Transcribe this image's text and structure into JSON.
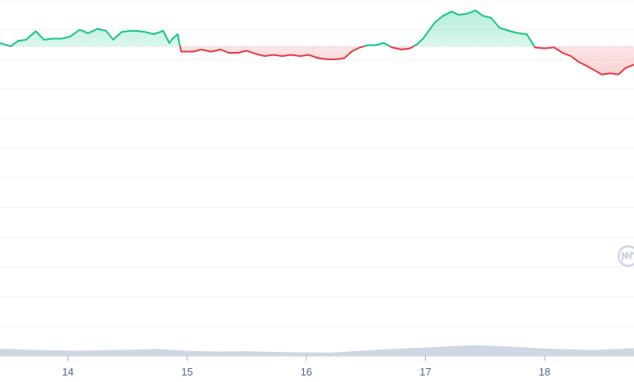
{
  "chart_data": {
    "type": "line",
    "title": "",
    "xlabel": "",
    "ylabel": "",
    "x_ticks": [
      "14",
      "15",
      "16",
      "17",
      "18"
    ],
    "x_range": [
      13.43,
      18.75
    ],
    "y_range": [
      0,
      12
    ],
    "baseline": 10.44,
    "grid": true,
    "legend": "none",
    "colors": {
      "up": "#16c784",
      "down": "#ea3943",
      "volume": "#cfd6e4",
      "grid": "#eff2f5",
      "baseline": "#b8bfcc",
      "logo": "#cfd6e4"
    },
    "price": [
      [
        13.43,
        10.55
      ],
      [
        13.52,
        10.44
      ],
      [
        13.58,
        10.62
      ],
      [
        13.65,
        10.66
      ],
      [
        13.73,
        10.95
      ],
      [
        13.8,
        10.66
      ],
      [
        13.88,
        10.7
      ],
      [
        13.95,
        10.7
      ],
      [
        14.02,
        10.77
      ],
      [
        14.1,
        11.0
      ],
      [
        14.17,
        10.88
      ],
      [
        14.25,
        11.03
      ],
      [
        14.32,
        10.96
      ],
      [
        14.38,
        10.66
      ],
      [
        14.45,
        10.92
      ],
      [
        14.52,
        10.96
      ],
      [
        14.58,
        10.96
      ],
      [
        14.65,
        10.92
      ],
      [
        14.72,
        10.85
      ],
      [
        14.8,
        10.96
      ],
      [
        14.85,
        10.55
      ],
      [
        14.88,
        10.7
      ],
      [
        14.92,
        10.85
      ],
      [
        14.95,
        10.26
      ],
      [
        14.98,
        10.26
      ],
      [
        15.05,
        10.26
      ],
      [
        15.12,
        10.33
      ],
      [
        15.2,
        10.26
      ],
      [
        15.28,
        10.33
      ],
      [
        15.35,
        10.22
      ],
      [
        15.43,
        10.22
      ],
      [
        15.5,
        10.29
      ],
      [
        15.58,
        10.18
      ],
      [
        15.65,
        10.11
      ],
      [
        15.72,
        10.15
      ],
      [
        15.8,
        10.11
      ],
      [
        15.87,
        10.15
      ],
      [
        15.95,
        10.11
      ],
      [
        16.02,
        10.15
      ],
      [
        16.1,
        10.04
      ],
      [
        16.18,
        10.0
      ],
      [
        16.25,
        10.0
      ],
      [
        16.32,
        10.04
      ],
      [
        16.38,
        10.26
      ],
      [
        16.45,
        10.4
      ],
      [
        16.52,
        10.48
      ],
      [
        16.58,
        10.48
      ],
      [
        16.65,
        10.55
      ],
      [
        16.72,
        10.4
      ],
      [
        16.8,
        10.33
      ],
      [
        16.87,
        10.37
      ],
      [
        16.93,
        10.51
      ],
      [
        16.98,
        10.7
      ],
      [
        17.02,
        10.92
      ],
      [
        17.08,
        11.25
      ],
      [
        17.15,
        11.47
      ],
      [
        17.22,
        11.61
      ],
      [
        17.28,
        11.5
      ],
      [
        17.35,
        11.54
      ],
      [
        17.42,
        11.65
      ],
      [
        17.48,
        11.47
      ],
      [
        17.55,
        11.4
      ],
      [
        17.62,
        11.07
      ],
      [
        17.7,
        10.96
      ],
      [
        17.78,
        10.88
      ],
      [
        17.85,
        10.85
      ],
      [
        17.92,
        10.4
      ],
      [
        18.0,
        10.37
      ],
      [
        18.08,
        10.4
      ],
      [
        18.15,
        10.22
      ],
      [
        18.22,
        10.11
      ],
      [
        18.28,
        9.93
      ],
      [
        18.35,
        9.78
      ],
      [
        18.4,
        9.67
      ],
      [
        18.48,
        9.49
      ],
      [
        18.55,
        9.53
      ],
      [
        18.62,
        9.49
      ],
      [
        18.68,
        9.71
      ],
      [
        18.75,
        9.82
      ]
    ],
    "volume": [
      [
        13.43,
        1.0
      ],
      [
        13.65,
        0.85
      ],
      [
        13.9,
        0.75
      ],
      [
        14.1,
        0.7
      ],
      [
        14.3,
        0.8
      ],
      [
        14.55,
        0.85
      ],
      [
        14.75,
        0.95
      ],
      [
        15.0,
        0.7
      ],
      [
        15.25,
        0.6
      ],
      [
        15.5,
        0.65
      ],
      [
        15.75,
        0.55
      ],
      [
        16.0,
        0.5
      ],
      [
        16.2,
        0.45
      ],
      [
        16.4,
        0.65
      ],
      [
        16.6,
        0.85
      ],
      [
        16.8,
        1.0
      ],
      [
        17.0,
        1.15
      ],
      [
        17.2,
        1.3
      ],
      [
        17.4,
        1.45
      ],
      [
        17.6,
        1.35
      ],
      [
        17.8,
        1.2
      ],
      [
        18.0,
        1.0
      ],
      [
        18.2,
        0.9
      ],
      [
        18.4,
        0.8
      ],
      [
        18.6,
        0.95
      ],
      [
        18.75,
        1.05
      ]
    ],
    "volume_max": 4
  }
}
